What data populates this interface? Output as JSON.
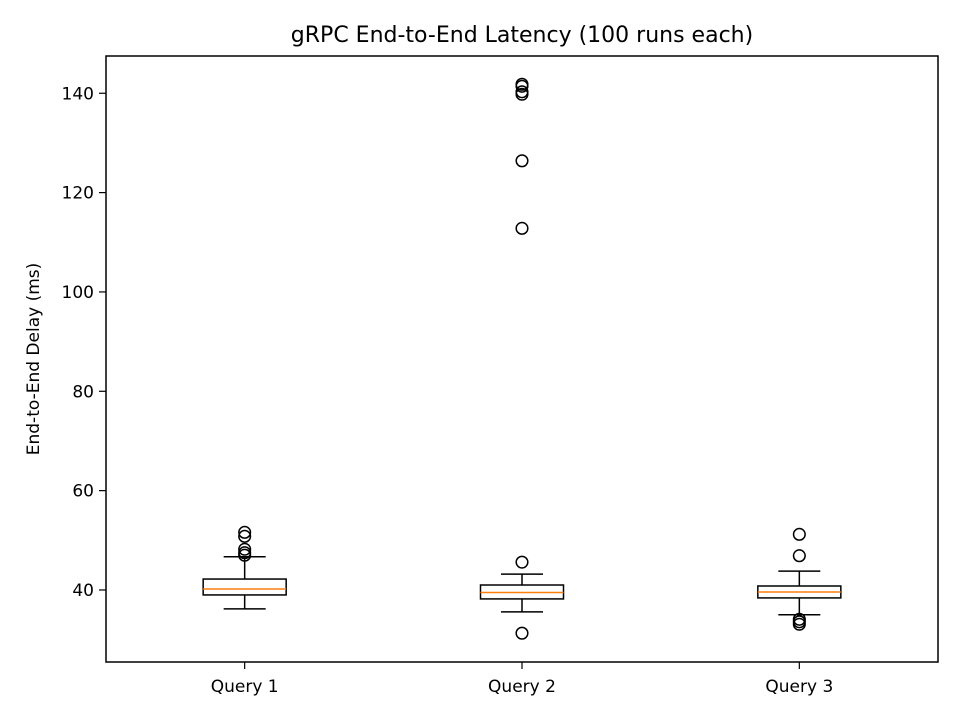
{
  "chart_data": {
    "type": "box",
    "title": "gRPC End-to-End Latency (100 runs each)",
    "xlabel": "",
    "ylabel": "End-to-End Delay (ms)",
    "ylim": [
      25.5,
      147.5
    ],
    "yticks": [
      40,
      60,
      80,
      100,
      120,
      140
    ],
    "grid": false,
    "categories": [
      "Query 1",
      "Query 2",
      "Query 3"
    ],
    "boxes": [
      {
        "label": "Query 1",
        "whisker_low": 36.2,
        "q1": 39.0,
        "median": 40.2,
        "q3": 42.2,
        "whisker_high": 46.7,
        "outliers": [
          47.0,
          47.5,
          48.2,
          50.8,
          51.6
        ]
      },
      {
        "label": "Query 2",
        "whisker_low": 35.6,
        "q1": 38.2,
        "median": 39.5,
        "q3": 41.0,
        "whisker_high": 43.2,
        "outliers": [
          31.3,
          45.6,
          112.8,
          126.4,
          139.8,
          140.3,
          141.4,
          141.8
        ]
      },
      {
        "label": "Query 3",
        "whisker_low": 35.0,
        "q1": 38.4,
        "median": 39.6,
        "q3": 40.8,
        "whisker_high": 43.8,
        "outliers": [
          33.1,
          33.6,
          34.1,
          46.9,
          51.2
        ]
      }
    ],
    "colors": {
      "box": "#000000",
      "median": "#ff7f0e",
      "outlier": "#000000"
    }
  }
}
